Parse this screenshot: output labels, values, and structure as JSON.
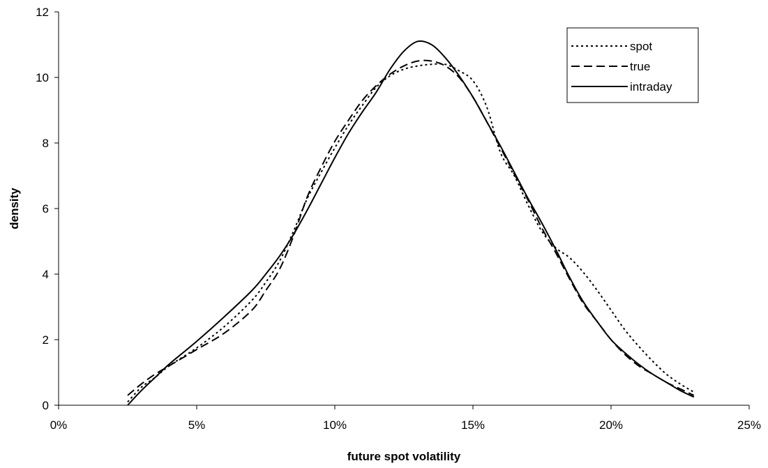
{
  "chart_data": {
    "type": "line",
    "title": "",
    "xlabel": "future spot volatility",
    "ylabel": "density",
    "xlim": [
      0,
      0.25
    ],
    "ylim": [
      0,
      12
    ],
    "x_ticks": [
      0,
      0.05,
      0.1,
      0.15,
      0.2,
      0.25
    ],
    "x_tick_labels": [
      "0%",
      "5%",
      "10%",
      "15%",
      "20%",
      "25%"
    ],
    "y_ticks": [
      0,
      2,
      4,
      6,
      8,
      10,
      12
    ],
    "y_tick_labels": [
      "0",
      "2",
      "4",
      "6",
      "8",
      "10",
      "12"
    ],
    "grid": false,
    "legend_position": "top-right",
    "series": [
      {
        "name": "spot",
        "style": "dotted",
        "color": "#000000",
        "x": [
          0.025,
          0.03,
          0.035,
          0.04,
          0.05,
          0.06,
          0.07,
          0.075,
          0.08,
          0.085,
          0.09,
          0.095,
          0.1,
          0.105,
          0.11,
          0.115,
          0.12,
          0.125,
          0.13,
          0.135,
          0.14,
          0.145,
          0.15,
          0.155,
          0.16,
          0.165,
          0.17,
          0.175,
          0.18,
          0.185,
          0.19,
          0.195,
          0.2,
          0.205,
          0.21,
          0.215,
          0.22,
          0.225,
          0.23
        ],
        "y": [
          0.1,
          0.55,
          0.85,
          1.2,
          1.75,
          2.4,
          3.2,
          3.75,
          4.4,
          5.3,
          6.3,
          7.1,
          7.85,
          8.55,
          9.15,
          9.7,
          10.05,
          10.25,
          10.35,
          10.4,
          10.4,
          10.2,
          9.9,
          9.1,
          7.7,
          7.0,
          6.1,
          5.3,
          4.8,
          4.5,
          4.05,
          3.5,
          2.9,
          2.3,
          1.8,
          1.35,
          0.95,
          0.65,
          0.4
        ]
      },
      {
        "name": "true",
        "style": "dashed",
        "color": "#000000",
        "x": [
          0.025,
          0.03,
          0.035,
          0.04,
          0.05,
          0.06,
          0.07,
          0.075,
          0.08,
          0.085,
          0.09,
          0.095,
          0.1,
          0.105,
          0.11,
          0.115,
          0.12,
          0.125,
          0.13,
          0.135,
          0.14,
          0.145,
          0.15,
          0.155,
          0.16,
          0.165,
          0.17,
          0.175,
          0.18,
          0.185,
          0.19,
          0.195,
          0.2,
          0.205,
          0.21,
          0.215,
          0.22,
          0.225,
          0.23
        ],
        "y": [
          0.3,
          0.65,
          0.95,
          1.2,
          1.7,
          2.2,
          2.9,
          3.5,
          4.15,
          5.15,
          6.35,
          7.25,
          8.05,
          8.7,
          9.3,
          9.75,
          10.1,
          10.35,
          10.5,
          10.5,
          10.35,
          10.0,
          9.4,
          8.65,
          7.85,
          7.05,
          6.25,
          5.4,
          4.65,
          3.85,
          3.1,
          2.55,
          2.0,
          1.55,
          1.2,
          0.95,
          0.7,
          0.5,
          0.3
        ]
      },
      {
        "name": "intraday",
        "style": "solid",
        "color": "#000000",
        "x": [
          0.025,
          0.03,
          0.035,
          0.04,
          0.05,
          0.06,
          0.07,
          0.075,
          0.08,
          0.085,
          0.09,
          0.095,
          0.1,
          0.105,
          0.11,
          0.115,
          0.12,
          0.125,
          0.13,
          0.135,
          0.14,
          0.145,
          0.15,
          0.155,
          0.16,
          0.165,
          0.17,
          0.175,
          0.18,
          0.185,
          0.19,
          0.195,
          0.2,
          0.205,
          0.21,
          0.215,
          0.22,
          0.225,
          0.23
        ],
        "y": [
          0.0,
          0.45,
          0.85,
          1.25,
          1.95,
          2.7,
          3.5,
          4.0,
          4.55,
          5.2,
          5.95,
          6.75,
          7.55,
          8.3,
          8.95,
          9.55,
          10.25,
          10.8,
          11.1,
          11.0,
          10.6,
          10.05,
          9.4,
          8.65,
          7.9,
          7.1,
          6.3,
          5.55,
          4.75,
          3.9,
          3.15,
          2.55,
          2.0,
          1.6,
          1.25,
          0.95,
          0.7,
          0.45,
          0.25
        ]
      }
    ]
  }
}
